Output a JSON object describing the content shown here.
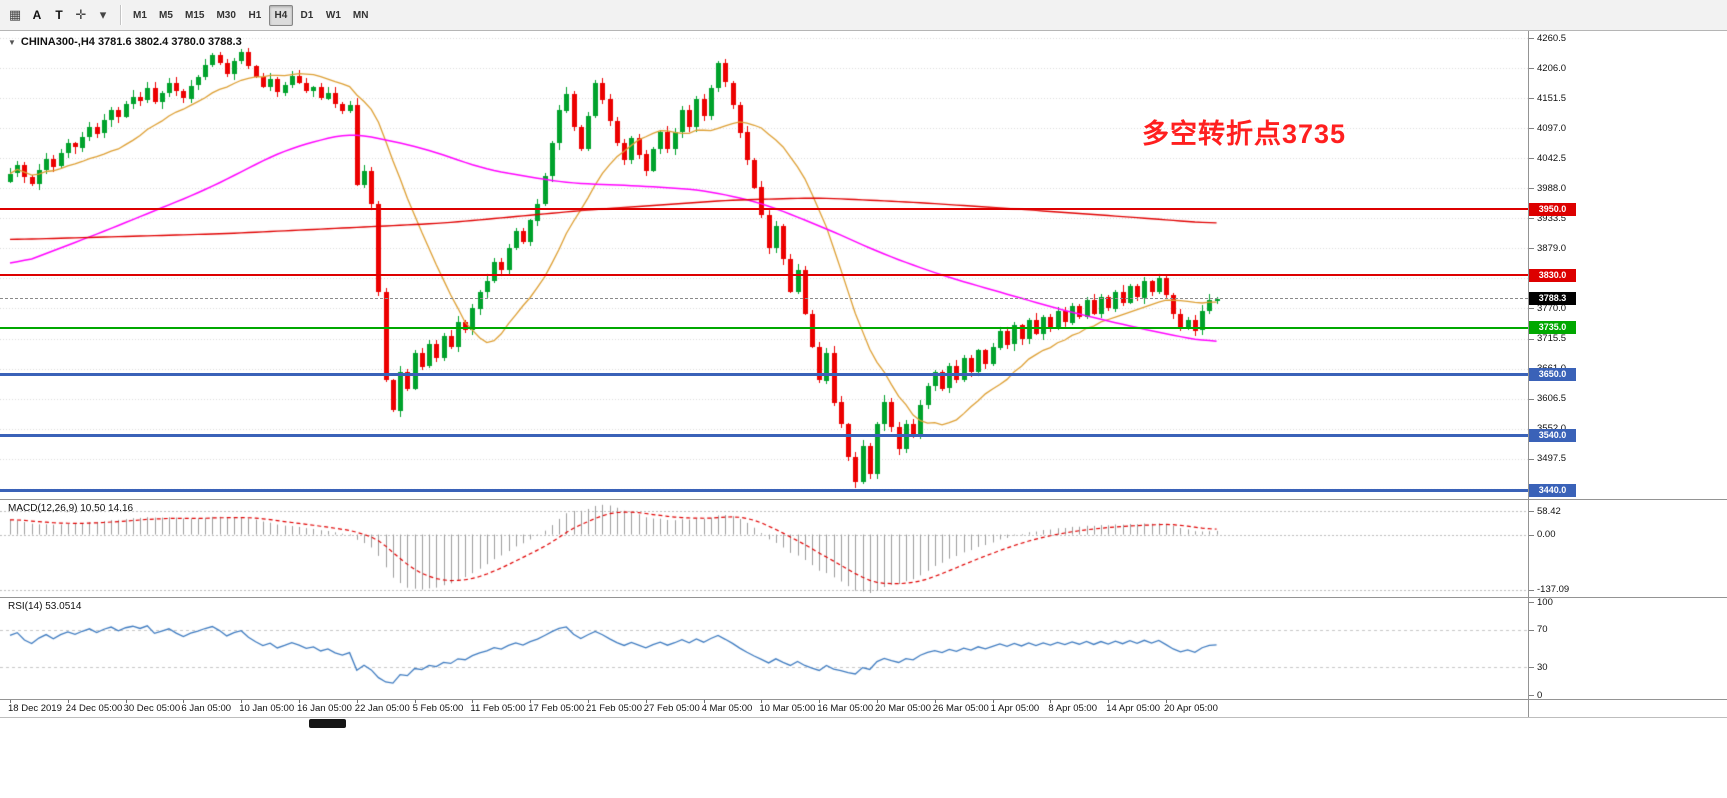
{
  "toolbar": {
    "tools": [
      {
        "name": "grid-icon",
        "glyph": "▦"
      },
      {
        "name": "text-cursor-icon",
        "glyph": "A"
      },
      {
        "name": "text-tool-icon",
        "glyph": "T"
      },
      {
        "name": "crosshair-icon",
        "glyph": "✛"
      },
      {
        "name": "dropdown-caret-icon",
        "glyph": "▾"
      }
    ],
    "timeframes": [
      "M1",
      "M5",
      "M15",
      "M30",
      "H1",
      "H4",
      "D1",
      "W1",
      "MN"
    ],
    "selected_timeframe": "H4"
  },
  "chart": {
    "title": "CHINA300-,H4 3781.6 3802.4 3780.0 3788.3",
    "annotation": "多空转折点3735",
    "annotation_color": "#ff1f1f",
    "current_price": 3788.3,
    "current_price_label": "3788.3"
  },
  "price_axis": {
    "range_top": 4274,
    "range_bottom": 3424,
    "ticks": [
      "4260.5",
      "4206.0",
      "4151.5",
      "4097.0",
      "4042.5",
      "3988.0",
      "3933.5",
      "3879.0",
      "3824.5",
      "3770.0",
      "3715.5",
      "3661.0",
      "3606.5",
      "3552.0",
      "3497.5",
      "3443.0"
    ]
  },
  "horizontal_lines": [
    {
      "label": "3950.0",
      "price": 3950,
      "color": "#dd0000",
      "thickness": 2
    },
    {
      "label": "3830.0",
      "price": 3830,
      "color": "#dd0000",
      "thickness": 2
    },
    {
      "label": "3735.0",
      "price": 3735,
      "color": "#00a800",
      "thickness": 2
    },
    {
      "label": "3650.0",
      "price": 3650,
      "color": "#3a62b8",
      "thickness": 3
    },
    {
      "label": "3540.0",
      "price": 3540,
      "color": "#3a62b8",
      "thickness": 3
    },
    {
      "label": "3440.0",
      "price": 3440,
      "color": "#3a62b8",
      "thickness": 3
    }
  ],
  "chart_data": {
    "type": "candlestick",
    "symbol": "CHINA300-",
    "timeframe": "H4",
    "ohlc": {
      "open": 3781.6,
      "high": 3802.4,
      "low": 3780.0,
      "close": 3788.3
    },
    "first_open": 4000,
    "up_color": "#00a22c",
    "down_color": "#ec0000",
    "closes": [
      4015,
      4030,
      4008,
      3996,
      4022,
      4042,
      4028,
      4052,
      4070,
      4062,
      4082,
      4100,
      4088,
      4112,
      4130,
      4118,
      4142,
      4155,
      4148,
      4170,
      4145,
      4162,
      4180,
      4165,
      4152,
      4175,
      4190,
      4212,
      4230,
      4216,
      4196,
      4220,
      4236,
      4210,
      4190,
      4172,
      4186,
      4162,
      4176,
      4192,
      4180,
      4165,
      4172,
      4152,
      4162,
      4142,
      4130,
      4140,
      3995,
      4020,
      3960,
      3800,
      3640,
      3585,
      3655,
      3625,
      3690,
      3665,
      3705,
      3680,
      3720,
      3700,
      3745,
      3730,
      3770,
      3800,
      3820,
      3855,
      3840,
      3880,
      3910,
      3890,
      3930,
      3960,
      4010,
      4070,
      4130,
      4160,
      4100,
      4060,
      4120,
      4180,
      4150,
      4110,
      4070,
      4040,
      4080,
      4050,
      4020,
      4060,
      4090,
      4060,
      4090,
      4130,
      4100,
      4150,
      4120,
      4170,
      4215,
      4180,
      4140,
      4090,
      4040,
      3990,
      3940,
      3880,
      3920,
      3860,
      3800,
      3840,
      3760,
      3700,
      3640,
      3690,
      3600,
      3560,
      3500,
      3455,
      3520,
      3470,
      3560,
      3600,
      3555,
      3515,
      3560,
      3540,
      3595,
      3630,
      3655,
      3625,
      3665,
      3640,
      3680,
      3655,
      3695,
      3670,
      3700,
      3730,
      3705,
      3740,
      3715,
      3750,
      3725,
      3755,
      3735,
      3765,
      3745,
      3775,
      3755,
      3785,
      3760,
      3790,
      3770,
      3800,
      3780,
      3810,
      3790,
      3820,
      3800,
      3825,
      3795,
      3760,
      3735,
      3750,
      3730,
      3765,
      3785,
      3788
    ],
    "moving_averages": [
      {
        "name": "ma-fast",
        "type": "sma",
        "window": 16,
        "color": "#dd9f33",
        "width": 1.3
      },
      {
        "name": "ma-medium",
        "type": "points",
        "color": "#ff00ff",
        "width": 1.5,
        "points": [
          [
            0,
            3845
          ],
          [
            13,
            3910
          ],
          [
            27,
            3985
          ],
          [
            38,
            4058
          ],
          [
            47,
            4090
          ],
          [
            57,
            4062
          ],
          [
            66,
            4022
          ],
          [
            77,
            3998
          ],
          [
            88,
            3992
          ],
          [
            96,
            3985
          ],
          [
            104,
            3962
          ],
          [
            113,
            3915
          ],
          [
            121,
            3868
          ],
          [
            129,
            3830
          ],
          [
            138,
            3796
          ],
          [
            146,
            3766
          ],
          [
            154,
            3741
          ],
          [
            161,
            3721
          ],
          [
            167,
            3707
          ]
        ]
      },
      {
        "name": "ma-slow",
        "type": "points",
        "color": "#e00000",
        "width": 1.4,
        "points": [
          [
            0,
            3895
          ],
          [
            30,
            3906
          ],
          [
            60,
            3925
          ],
          [
            80,
            3949
          ],
          [
            100,
            3967
          ],
          [
            112,
            3971
          ],
          [
            125,
            3963
          ],
          [
            140,
            3950
          ],
          [
            155,
            3936
          ],
          [
            167,
            3924
          ]
        ]
      }
    ]
  },
  "macd": {
    "label": "MACD(12,26,9) 10.50 14.16",
    "fast": 12,
    "slow": 26,
    "signal": 9,
    "histogram_color": "#9c9c9c",
    "signal_color": "#e00000",
    "scale": [
      {
        "label": "58.42",
        "value": 58.42
      },
      {
        "label": "0.00",
        "value": 0
      },
      {
        "label": "-137.09",
        "value": -137.09
      }
    ]
  },
  "rsi": {
    "label": "RSI(14) 53.0514",
    "period": 14,
    "line_color": "#3e7bc0",
    "levels": [
      70,
      30
    ],
    "scale": [
      {
        "label": "100",
        "value": 100
      },
      {
        "label": "70",
        "value": 70
      },
      {
        "label": "30",
        "value": 30
      },
      {
        "label": "0",
        "value": 0
      }
    ]
  },
  "time_axis": {
    "labels": [
      "18 Dec 2019",
      "24 Dec 05:00",
      "30 Dec 05:00",
      "6 Jan 05:00",
      "10 Jan 05:00",
      "16 Jan 05:00",
      "22 Jan 05:00",
      "5 Feb 05:00",
      "11 Feb 05:00",
      "17 Feb 05:00",
      "21 Feb 05:00",
      "27 Feb 05:00",
      "4 Mar 05:00",
      "10 Mar 05:00",
      "16 Mar 05:00",
      "20 Mar 05:00",
      "26 Mar 05:00",
      "1 Apr 05:00",
      "8 Apr 05:00",
      "14 Apr 05:00",
      "20 Apr 05:00"
    ]
  }
}
